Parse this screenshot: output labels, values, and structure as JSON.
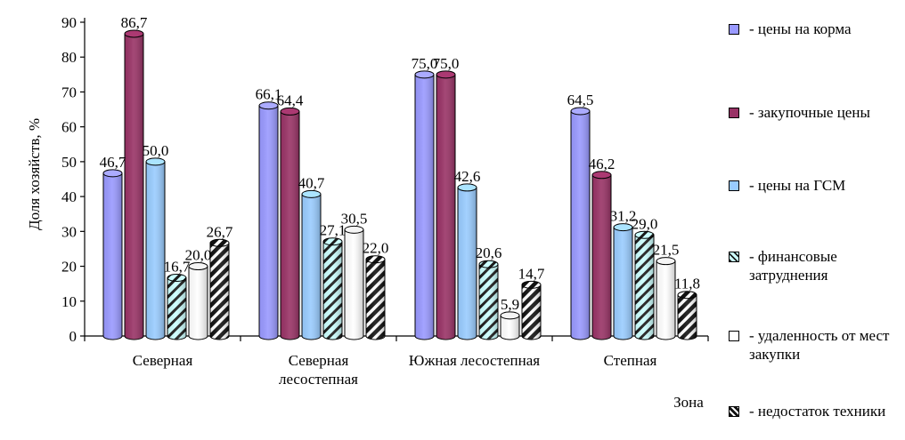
{
  "chart_data": {
    "type": "bar",
    "categories": [
      "Северная",
      "Северная лесостепная",
      "Южная лесостепная",
      "Степная"
    ],
    "category_lines": [
      [
        "Северная"
      ],
      [
        "Северная",
        "лесостепная"
      ],
      [
        "Южная лесостепная"
      ],
      [
        "Степная"
      ]
    ],
    "ylabel": "Доля хозяйств, %",
    "xlabel": "Зона",
    "ylim": [
      0,
      90
    ],
    "yticks": [
      0,
      10,
      20,
      30,
      40,
      50,
      60,
      70,
      80,
      90
    ],
    "grid": false,
    "legend_position": "right",
    "series": [
      {
        "name": "- цены на корма",
        "values": [
          46.7,
          66.1,
          75.0,
          64.5
        ],
        "labels": [
          "46,7",
          "66,1",
          "75,0",
          "64,5"
        ],
        "color": "#9999ff",
        "pattern": "solid"
      },
      {
        "name": "- закупочные цены",
        "values": [
          86.7,
          64.4,
          75.0,
          46.2
        ],
        "labels": [
          "86,7",
          "64,4",
          "75,0",
          "46,2"
        ],
        "color": "#993366",
        "pattern": "solid"
      },
      {
        "name": "- цены на ГСМ",
        "values": [
          50.0,
          40.7,
          42.6,
          31.2
        ],
        "labels": [
          "50,0",
          "40,7",
          "42,6",
          "31,2"
        ],
        "color": "#99ccff",
        "pattern": "solid"
      },
      {
        "name": "- финансовые затруднения",
        "values": [
          16.7,
          27.1,
          20.6,
          29.0
        ],
        "labels": [
          "16,7",
          "27,1",
          "20,6",
          "29,0"
        ],
        "color": "#ccffff",
        "pattern": "diagonal"
      },
      {
        "name": "- удаленность от мест закупки",
        "values": [
          20.0,
          30.5,
          5.9,
          21.5
        ],
        "labels": [
          "20,0",
          "30,5",
          "5,9",
          "21,5"
        ],
        "color": "#ffffff",
        "pattern": "solid"
      },
      {
        "name": "- недостаток техники",
        "values": [
          26.7,
          22.0,
          14.7,
          11.8
        ],
        "labels": [
          "26,7",
          "22,0",
          "14,7",
          "11,8"
        ],
        "color": "#ffffff",
        "pattern": "stripes-dark"
      }
    ]
  }
}
